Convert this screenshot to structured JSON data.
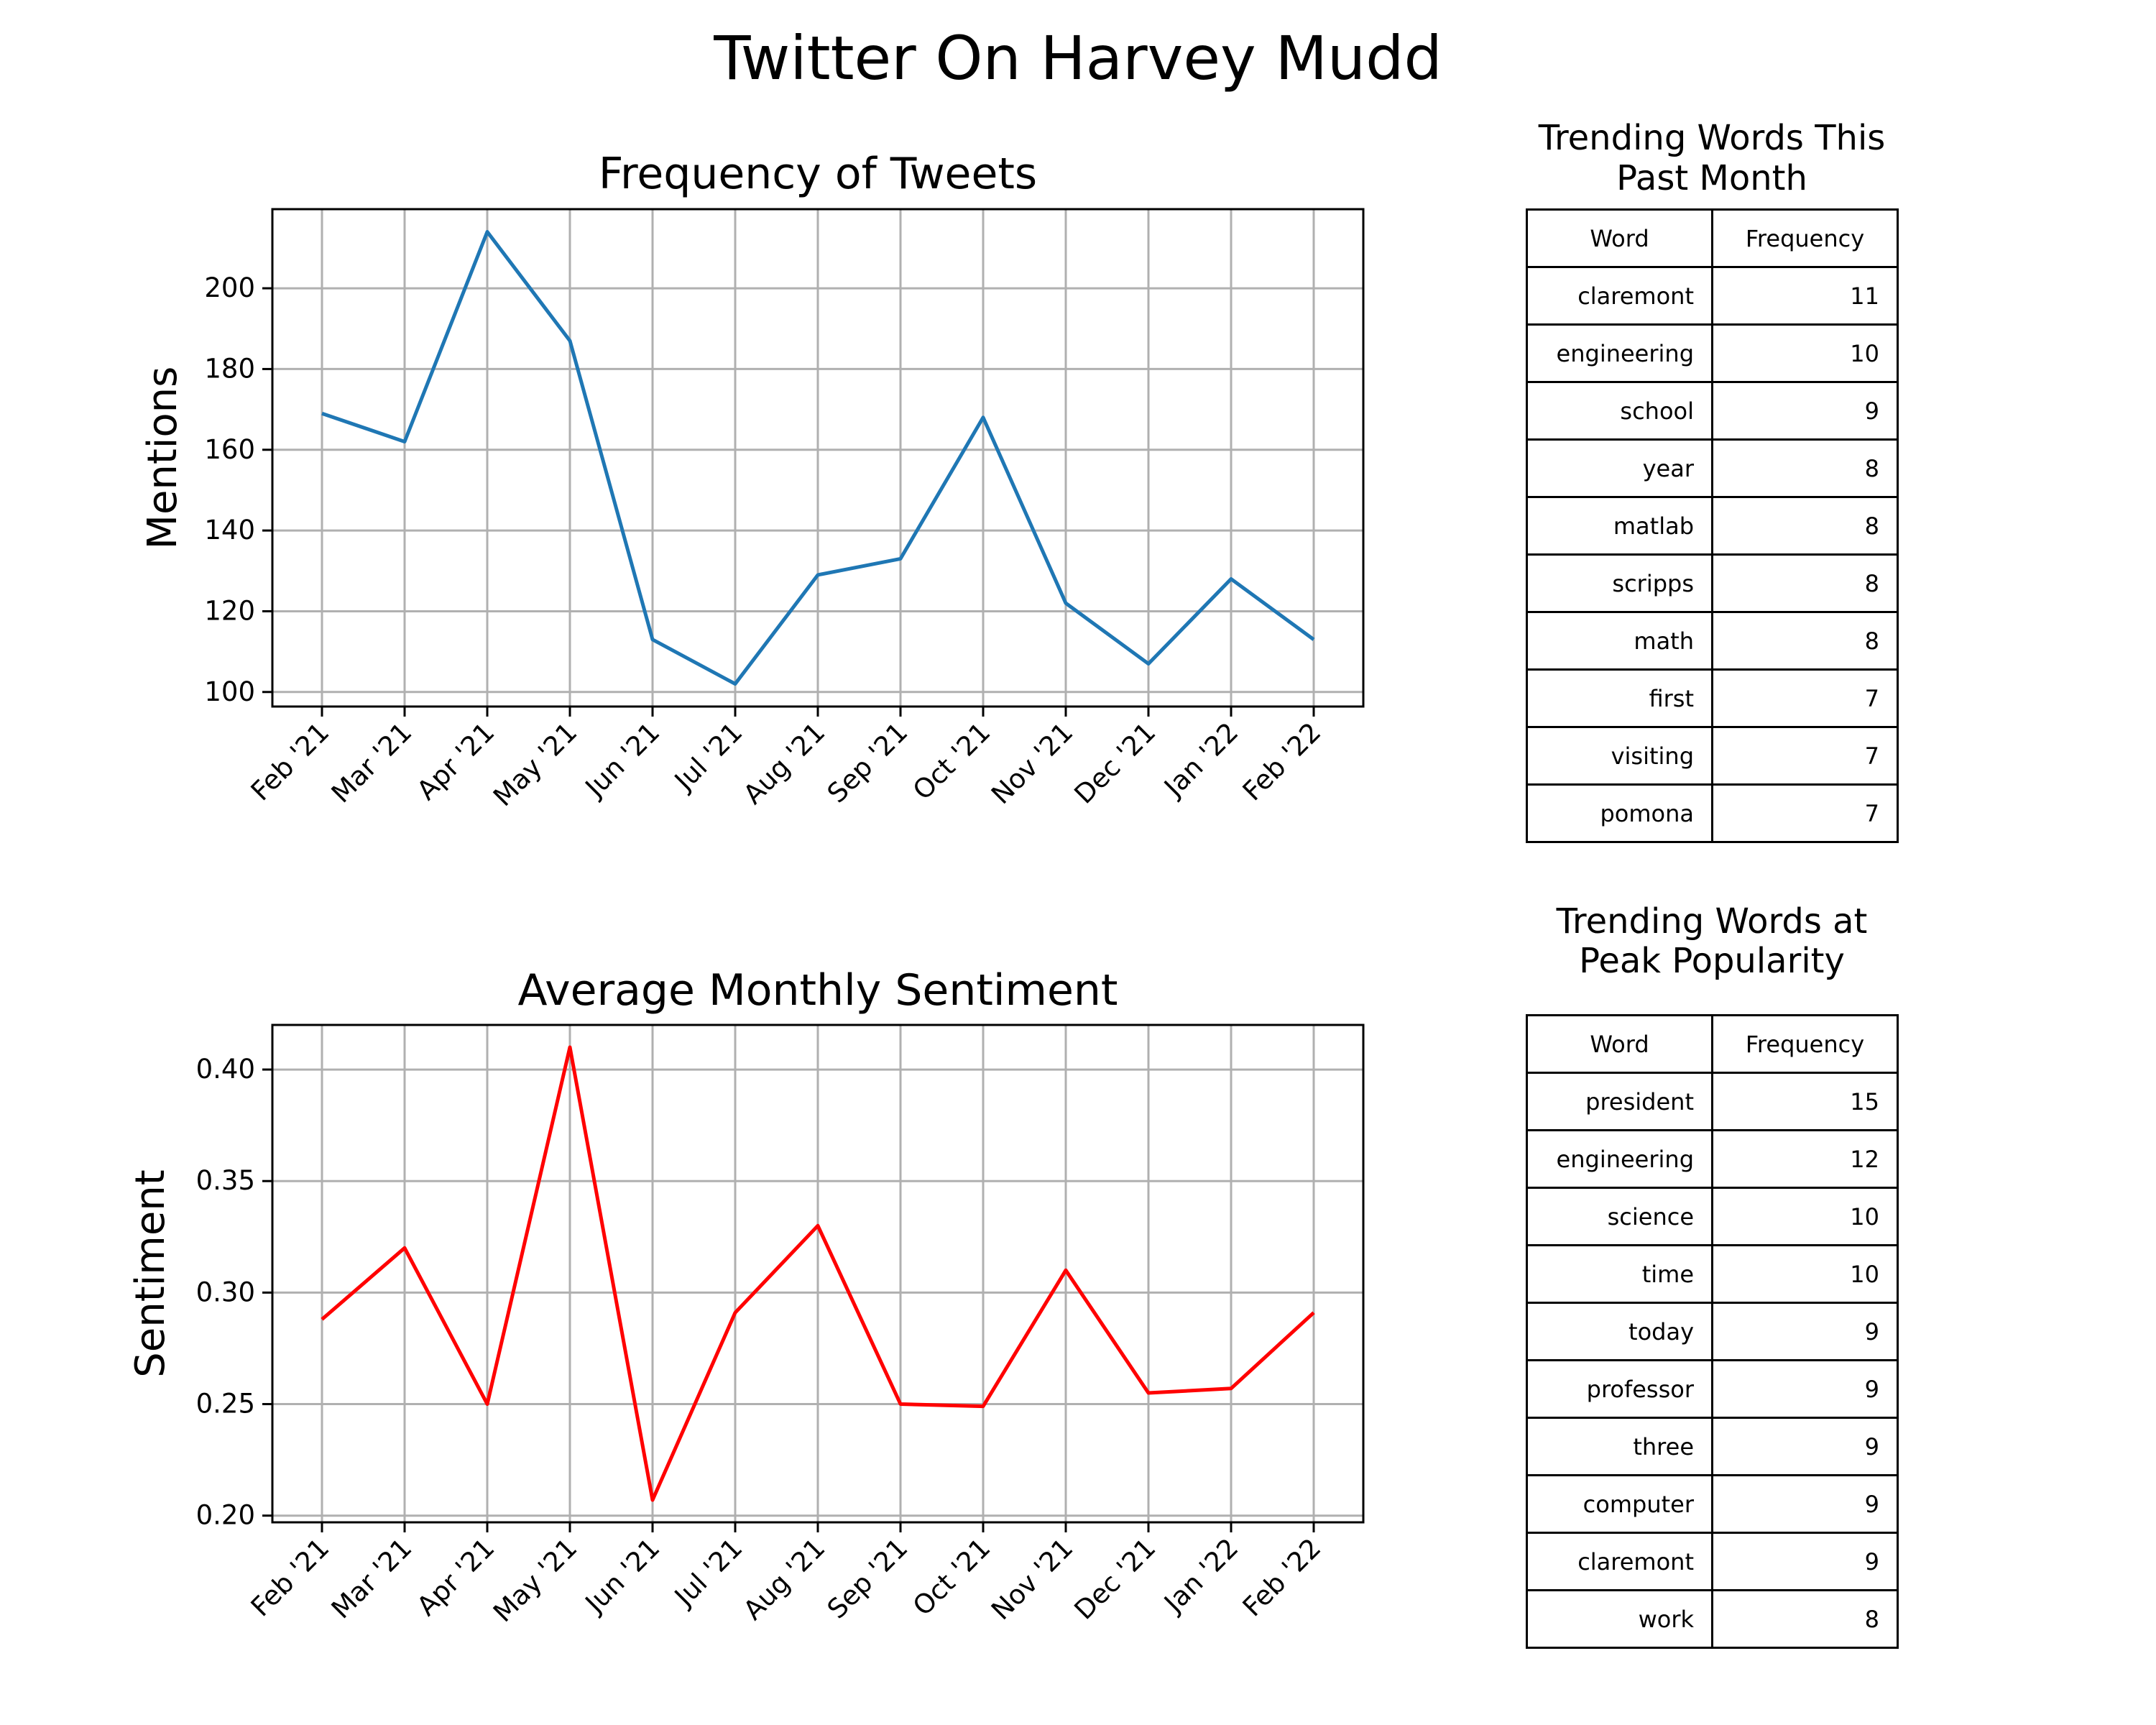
{
  "suptitle": "Twitter On Harvey Mudd",
  "chart_data": [
    {
      "type": "line",
      "title": "Frequency of Tweets",
      "xlabel": "",
      "ylabel": "Mentions",
      "categories": [
        "Feb '21",
        "Mar '21",
        "Apr '21",
        "May '21",
        "Jun '21",
        "Jul '21",
        "Aug '21",
        "Sep '21",
        "Oct '21",
        "Nov '21",
        "Dec '21",
        "Jan '22",
        "Feb '22"
      ],
      "values": [
        169,
        162,
        214,
        187,
        113,
        102,
        129,
        133,
        168,
        122,
        107,
        128,
        113
      ],
      "ylim": [
        96.4,
        219.6
      ],
      "yticks": [
        100,
        120,
        140,
        160,
        180,
        200
      ],
      "ytick_labels": [
        "100",
        "120",
        "140",
        "160",
        "180",
        "200"
      ],
      "color": "#1f77b4",
      "grid": true
    },
    {
      "type": "line",
      "title": "Average Monthly Sentiment",
      "xlabel": "",
      "ylabel": "Sentiment",
      "categories": [
        "Feb '21",
        "Mar '21",
        "Apr '21",
        "May '21",
        "Jun '21",
        "Jul '21",
        "Aug '21",
        "Sep '21",
        "Oct '21",
        "Nov '21",
        "Dec '21",
        "Jan '22",
        "Feb '22"
      ],
      "values": [
        0.288,
        0.32,
        0.25,
        0.41,
        0.207,
        0.291,
        0.33,
        0.25,
        0.249,
        0.31,
        0.255,
        0.257,
        0.291
      ],
      "ylim": [
        0.197,
        0.42
      ],
      "yticks": [
        0.2,
        0.25,
        0.3,
        0.35,
        0.4
      ],
      "ytick_labels": [
        "0.20",
        "0.25",
        "0.30",
        "0.35",
        "0.40"
      ],
      "color": "#ff0000",
      "grid": true
    },
    {
      "type": "table",
      "title_lines": [
        "Trending Words This",
        "Past Month"
      ],
      "columns": [
        "Word",
        "Frequency"
      ],
      "rows": [
        [
          "claremont",
          "11"
        ],
        [
          "engineering",
          "10"
        ],
        [
          "school",
          "9"
        ],
        [
          "year",
          "8"
        ],
        [
          "matlab",
          "8"
        ],
        [
          "scripps",
          "8"
        ],
        [
          "math",
          "8"
        ],
        [
          "first",
          "7"
        ],
        [
          "visiting",
          "7"
        ],
        [
          "pomona",
          "7"
        ]
      ]
    },
    {
      "type": "table",
      "title_lines": [
        "Trending Words at",
        "Peak Popularity"
      ],
      "columns": [
        "Word",
        "Frequency"
      ],
      "rows": [
        [
          "president",
          "15"
        ],
        [
          "engineering",
          "12"
        ],
        [
          "science",
          "10"
        ],
        [
          "time",
          "10"
        ],
        [
          "today",
          "9"
        ],
        [
          "professor",
          "9"
        ],
        [
          "three",
          "9"
        ],
        [
          "computer",
          "9"
        ],
        [
          "claremont",
          "9"
        ],
        [
          "work",
          "8"
        ]
      ]
    }
  ]
}
